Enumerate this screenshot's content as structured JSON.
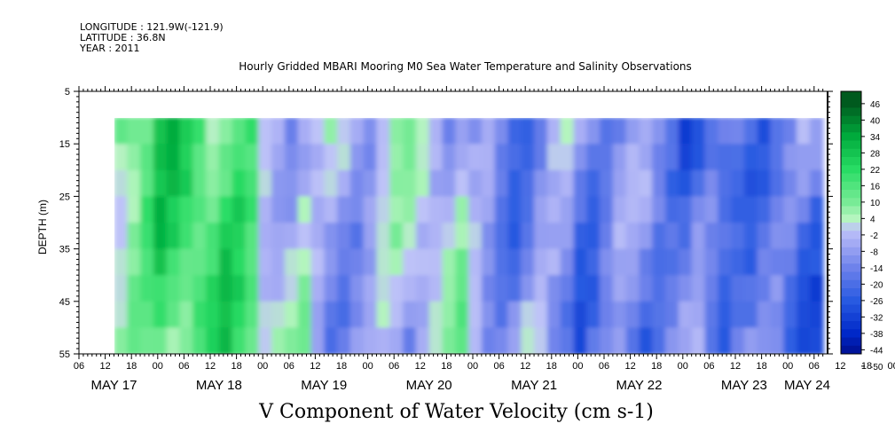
{
  "header": {
    "longitude": "LONGITUDE : 121.9W(-121.9)",
    "latitude": "LATITUDE : 36.8N",
    "year": "YEAR : 2011"
  },
  "chart_data": {
    "type": "heatmap",
    "title": "Hourly Gridded MBARI Mooring M0 Sea Water Temperature and Salinity Observations",
    "xlabel": "V Component of Water Velocity (cm s-1)",
    "ylabel": "DEPTH (m)",
    "ylim": [
      5,
      55
    ],
    "y_ticks": [
      5,
      15,
      25,
      35,
      45,
      55
    ],
    "x_hour_ticks": [
      "06",
      "12",
      "18",
      "00",
      "06",
      "12",
      "18",
      "00",
      "06",
      "12",
      "18",
      "00",
      "06",
      "12",
      "18",
      "00",
      "06",
      "12",
      "18",
      "00",
      "06",
      "12",
      "18",
      "00",
      "06",
      "12",
      "18",
      "00",
      "06",
      "12",
      "18",
      "00",
      "06"
    ],
    "x_day_labels": [
      "MAY 17",
      "MAY 18",
      "MAY 19",
      "MAY 20",
      "MAY 21",
      "MAY 22",
      "MAY 23",
      "MAY 24"
    ],
    "colorbar_labels": [
      "46",
      "40",
      "34",
      "28",
      "22",
      "16",
      "10",
      "4",
      "-2",
      "-8",
      "-14",
      "-20",
      "-26",
      "-32",
      "-38",
      "-44",
      "-50"
    ],
    "data_depth_range": [
      10,
      55
    ],
    "data_time_start": "MAY 17 14:00",
    "data_time_end": "MAY 24 06:00",
    "v_profile_by_day_half": [
      {
        "day": "MAY 17 12-24",
        "mean_v": 12
      },
      {
        "day": "MAY 18 00-12",
        "mean_v": 16
      },
      {
        "day": "MAY 18 12-24",
        "mean_v": 14
      },
      {
        "day": "MAY 19 00-12",
        "mean_v": 4
      },
      {
        "day": "MAY 19 12-24",
        "mean_v": -4
      },
      {
        "day": "MAY 20 00-12",
        "mean_v": -6
      },
      {
        "day": "MAY 20 12-24",
        "mean_v": -2
      },
      {
        "day": "MAY 21 00-12",
        "mean_v": -10
      },
      {
        "day": "MAY 21 12-24",
        "mean_v": -6
      },
      {
        "day": "MAY 22 00-12",
        "mean_v": -14
      },
      {
        "day": "MAY 22 12-24",
        "mean_v": -18
      },
      {
        "day": "MAY 23 00-12",
        "mean_v": -20
      },
      {
        "day": "MAY 23 12-24",
        "mean_v": -12
      },
      {
        "day": "MAY 24 00-06",
        "mean_v": -16
      }
    ]
  }
}
